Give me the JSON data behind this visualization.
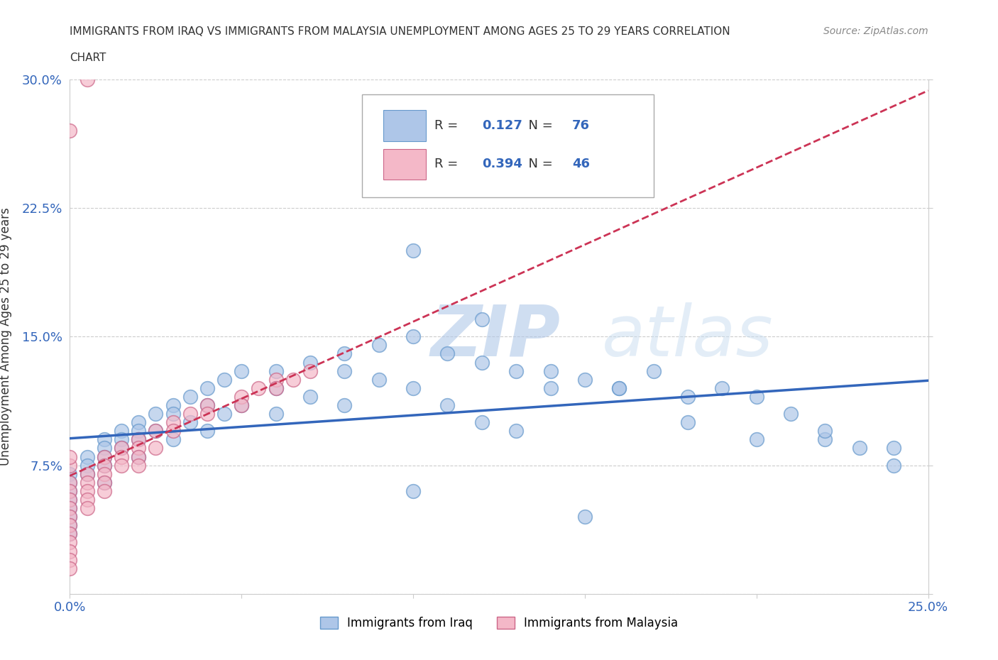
{
  "title_line1": "IMMIGRANTS FROM IRAQ VS IMMIGRANTS FROM MALAYSIA UNEMPLOYMENT AMONG AGES 25 TO 29 YEARS CORRELATION",
  "title_line2": "CHART",
  "source": "Source: ZipAtlas.com",
  "ylabel": "Unemployment Among Ages 25 to 29 years",
  "xlim": [
    0.0,
    0.25
  ],
  "ylim": [
    0.0,
    0.3
  ],
  "iraq_color": "#aec6e8",
  "iraq_edge_color": "#6699cc",
  "malaysia_color": "#f4b8c8",
  "malaysia_edge_color": "#cc6688",
  "iraq_trend_color": "#3366bb",
  "malaysia_trend_color": "#cc3355",
  "iraq_R": 0.127,
  "iraq_N": 76,
  "malaysia_R": 0.394,
  "malaysia_N": 46,
  "watermark": "ZIPatlas",
  "watermark_color_zip": "#b8cce4",
  "watermark_color_atlas": "#c8ddf0",
  "legend_R_color": "#3366bb",
  "legend_N_color": "#3366bb",
  "iraq_x": [
    0.0,
    0.0,
    0.0,
    0.0,
    0.0,
    0.0,
    0.0,
    0.0,
    0.005,
    0.005,
    0.005,
    0.01,
    0.01,
    0.01,
    0.01,
    0.01,
    0.015,
    0.015,
    0.015,
    0.02,
    0.02,
    0.02,
    0.02,
    0.025,
    0.025,
    0.03,
    0.03,
    0.03,
    0.035,
    0.035,
    0.04,
    0.04,
    0.04,
    0.045,
    0.045,
    0.05,
    0.05,
    0.06,
    0.06,
    0.06,
    0.07,
    0.07,
    0.08,
    0.08,
    0.08,
    0.09,
    0.09,
    0.1,
    0.1,
    0.11,
    0.11,
    0.12,
    0.12,
    0.13,
    0.13,
    0.14,
    0.15,
    0.16,
    0.17,
    0.18,
    0.19,
    0.2,
    0.21,
    0.22,
    0.23,
    0.24,
    0.1,
    0.12,
    0.14,
    0.16,
    0.18,
    0.2,
    0.22,
    0.24,
    0.1,
    0.15
  ],
  "iraq_y": [
    0.07,
    0.065,
    0.06,
    0.055,
    0.05,
    0.045,
    0.04,
    0.035,
    0.08,
    0.075,
    0.07,
    0.09,
    0.085,
    0.08,
    0.075,
    0.065,
    0.095,
    0.09,
    0.085,
    0.1,
    0.095,
    0.09,
    0.08,
    0.105,
    0.095,
    0.11,
    0.105,
    0.09,
    0.115,
    0.1,
    0.12,
    0.11,
    0.095,
    0.125,
    0.105,
    0.13,
    0.11,
    0.13,
    0.12,
    0.105,
    0.135,
    0.115,
    0.14,
    0.13,
    0.11,
    0.145,
    0.125,
    0.15,
    0.12,
    0.14,
    0.11,
    0.135,
    0.1,
    0.13,
    0.095,
    0.12,
    0.125,
    0.12,
    0.13,
    0.115,
    0.12,
    0.115,
    0.105,
    0.09,
    0.085,
    0.075,
    0.2,
    0.16,
    0.13,
    0.12,
    0.1,
    0.09,
    0.095,
    0.085,
    0.06,
    0.045
  ],
  "malaysia_x": [
    0.0,
    0.0,
    0.0,
    0.0,
    0.0,
    0.0,
    0.0,
    0.0,
    0.0,
    0.0,
    0.0,
    0.0,
    0.0,
    0.005,
    0.005,
    0.005,
    0.005,
    0.005,
    0.01,
    0.01,
    0.01,
    0.01,
    0.01,
    0.015,
    0.015,
    0.015,
    0.02,
    0.02,
    0.02,
    0.02,
    0.025,
    0.025,
    0.03,
    0.03,
    0.035,
    0.04,
    0.04,
    0.05,
    0.05,
    0.055,
    0.06,
    0.06,
    0.065,
    0.07,
    0.0,
    0.005
  ],
  "malaysia_y": [
    0.065,
    0.06,
    0.055,
    0.05,
    0.045,
    0.04,
    0.035,
    0.03,
    0.025,
    0.02,
    0.015,
    0.075,
    0.08,
    0.07,
    0.065,
    0.06,
    0.055,
    0.05,
    0.08,
    0.075,
    0.07,
    0.065,
    0.06,
    0.085,
    0.08,
    0.075,
    0.09,
    0.085,
    0.08,
    0.075,
    0.095,
    0.085,
    0.1,
    0.095,
    0.105,
    0.11,
    0.105,
    0.115,
    0.11,
    0.12,
    0.125,
    0.12,
    0.125,
    0.13,
    0.27,
    0.3
  ]
}
